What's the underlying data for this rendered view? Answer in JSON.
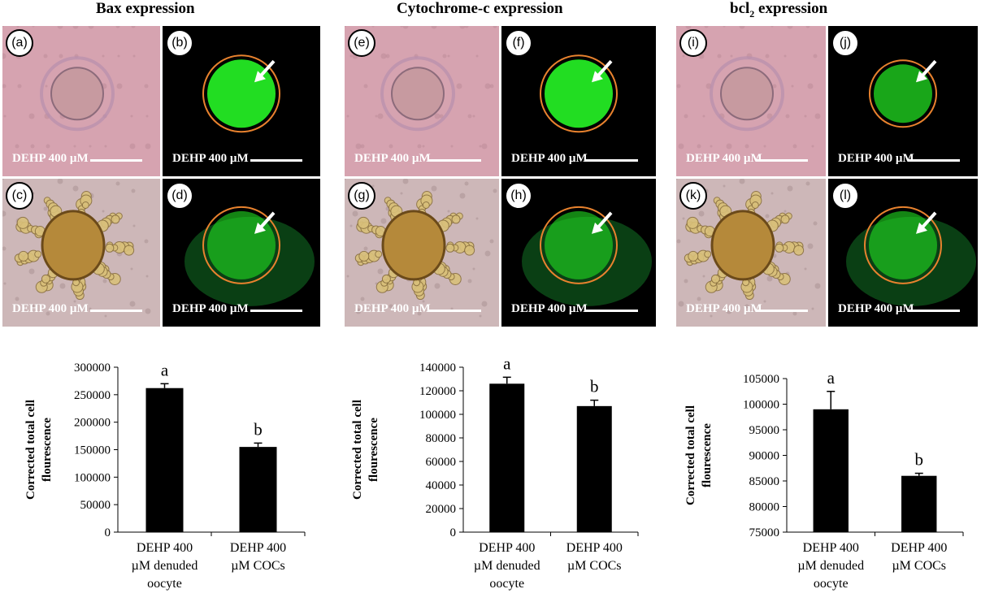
{
  "panels": [
    {
      "title": "Bax expression",
      "title_sub": "",
      "images": [
        {
          "letter": "(a)",
          "caption": "DEHP 400 µM",
          "kind": "bright-denuded"
        },
        {
          "letter": "(b)",
          "caption": "DEHP 400 µM",
          "kind": "fluor-bright"
        },
        {
          "letter": "(c)",
          "caption": "DEHP 400 µM",
          "kind": "bright-coc"
        },
        {
          "letter": "(d)",
          "caption": "DEHP 400 µM",
          "kind": "fluor-dim"
        }
      ]
    },
    {
      "title": "Cytochrome-c expression",
      "title_sub": "",
      "images": [
        {
          "letter": "(e)",
          "caption": "DEHP 400 µM",
          "kind": "bright-denuded"
        },
        {
          "letter": "(f)",
          "caption": "DEHP 400 µM",
          "kind": "fluor-bright"
        },
        {
          "letter": "(g)",
          "caption": "DEHP 400 µM",
          "kind": "bright-coc"
        },
        {
          "letter": "(h)",
          "caption": "DEHP 400 µM",
          "kind": "fluor-dim"
        }
      ]
    },
    {
      "title": "bcl",
      "title_sub": "2",
      "title_suffix": " expression",
      "images": [
        {
          "letter": "(i)",
          "caption": "DEHP 400 µM",
          "kind": "bright-denuded"
        },
        {
          "letter": "(j)",
          "caption": "DEHP 400 µM",
          "kind": "fluor-mid"
        },
        {
          "letter": "(k)",
          "caption": "DEHP 400 µM",
          "kind": "bright-coc"
        },
        {
          "letter": "(l)",
          "caption": "DEHP 400 µM",
          "kind": "fluor-dim"
        }
      ]
    }
  ],
  "colors": {
    "bar": "#000000",
    "ring": "#e8822e",
    "fluor": "#22dd22",
    "brightfield": "#d6a3b0"
  },
  "chart_data": [
    {
      "type": "bar",
      "title": "Bax expression",
      "ylabel_lines": [
        "Corrected total cell",
        "flourescence"
      ],
      "categories": [
        [
          "DEHP 400",
          "µM denuded",
          "oocyte"
        ],
        [
          "DEHP 400",
          "µM COCs"
        ]
      ],
      "values": [
        262000,
        155000
      ],
      "errors": [
        8000,
        7000
      ],
      "sig_letters": [
        "a",
        "b"
      ],
      "ylim": [
        0,
        300000
      ],
      "yticks": [
        "0",
        "50000",
        "100000",
        "150000",
        "200000",
        "250000",
        "300000"
      ]
    },
    {
      "type": "bar",
      "title": "Cytochrome-c expression",
      "ylabel_lines": [
        "Corrected total cell",
        "flourescence"
      ],
      "categories": [
        [
          "DEHP 400",
          "µM denuded",
          "oocyte"
        ],
        [
          "DEHP 400",
          "µM COCs"
        ]
      ],
      "values": [
        126000,
        107000
      ],
      "errors": [
        5500,
        5000
      ],
      "sig_letters": [
        "a",
        "b"
      ],
      "ylim": [
        0,
        140000
      ],
      "yticks": [
        "0",
        "20000",
        "40000",
        "60000",
        "80000",
        "100000",
        "120000",
        "140000"
      ]
    },
    {
      "type": "bar",
      "title": "bcl2 expression",
      "ylabel_lines": [
        "Corrected total cell",
        "flourescence"
      ],
      "categories": [
        [
          "DEHP 400",
          "µM denuded",
          "oocyte"
        ],
        [
          "DEHP 400",
          "µM COCs"
        ]
      ],
      "values": [
        99000,
        86000
      ],
      "errors": [
        3500,
        500
      ],
      "sig_letters": [
        "a",
        "b"
      ],
      "ylim": [
        75000,
        105000
      ],
      "yticks": [
        "75000",
        "80000",
        "85000",
        "90000",
        "95000",
        "100000",
        "105000"
      ]
    }
  ]
}
